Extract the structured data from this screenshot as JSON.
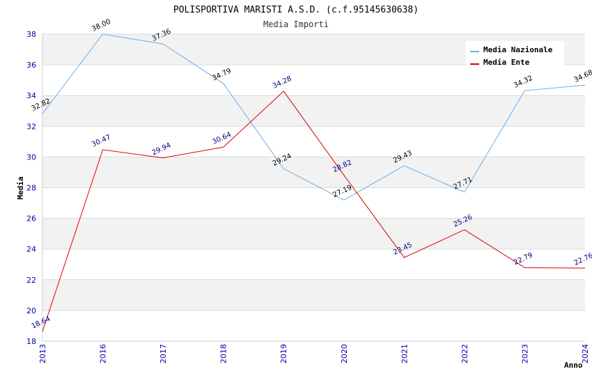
{
  "chart_data": {
    "type": "line",
    "title": "POLISPORTIVA MARISTI A.S.D. (c.f.95145630638)",
    "subtitle": "Media Importi",
    "xlabel": "Anno",
    "ylabel": "Media",
    "categories": [
      "2013",
      "2016",
      "2017",
      "2018",
      "2019",
      "2020",
      "2021",
      "2022",
      "2023",
      "2024"
    ],
    "ylim": [
      18,
      38
    ],
    "yticks": [
      18,
      20,
      22,
      24,
      26,
      28,
      30,
      32,
      34,
      36,
      38
    ],
    "grid": true,
    "legend_position": "top-right",
    "series": [
      {
        "name": "Media Nazionale",
        "color": "#6aaee8",
        "values": [
          32.82,
          38.0,
          37.36,
          34.79,
          29.24,
          27.19,
          29.43,
          27.71,
          34.32,
          34.68
        ],
        "labels": [
          "32.82",
          "38.00",
          "37.36",
          "34.79",
          "29.24",
          "27.19",
          "29.43",
          "27.71",
          "34.32",
          "34.68"
        ]
      },
      {
        "name": "Media Ente",
        "color": "#dd0000",
        "values": [
          18.64,
          30.47,
          29.94,
          30.64,
          34.28,
          28.82,
          23.45,
          25.26,
          22.79,
          22.76
        ],
        "labels": [
          "18.64",
          "30.47",
          "29.94",
          "30.64",
          "34.28",
          "28.82",
          "23.45",
          "25.26",
          "22.79",
          "22.76"
        ]
      }
    ]
  }
}
